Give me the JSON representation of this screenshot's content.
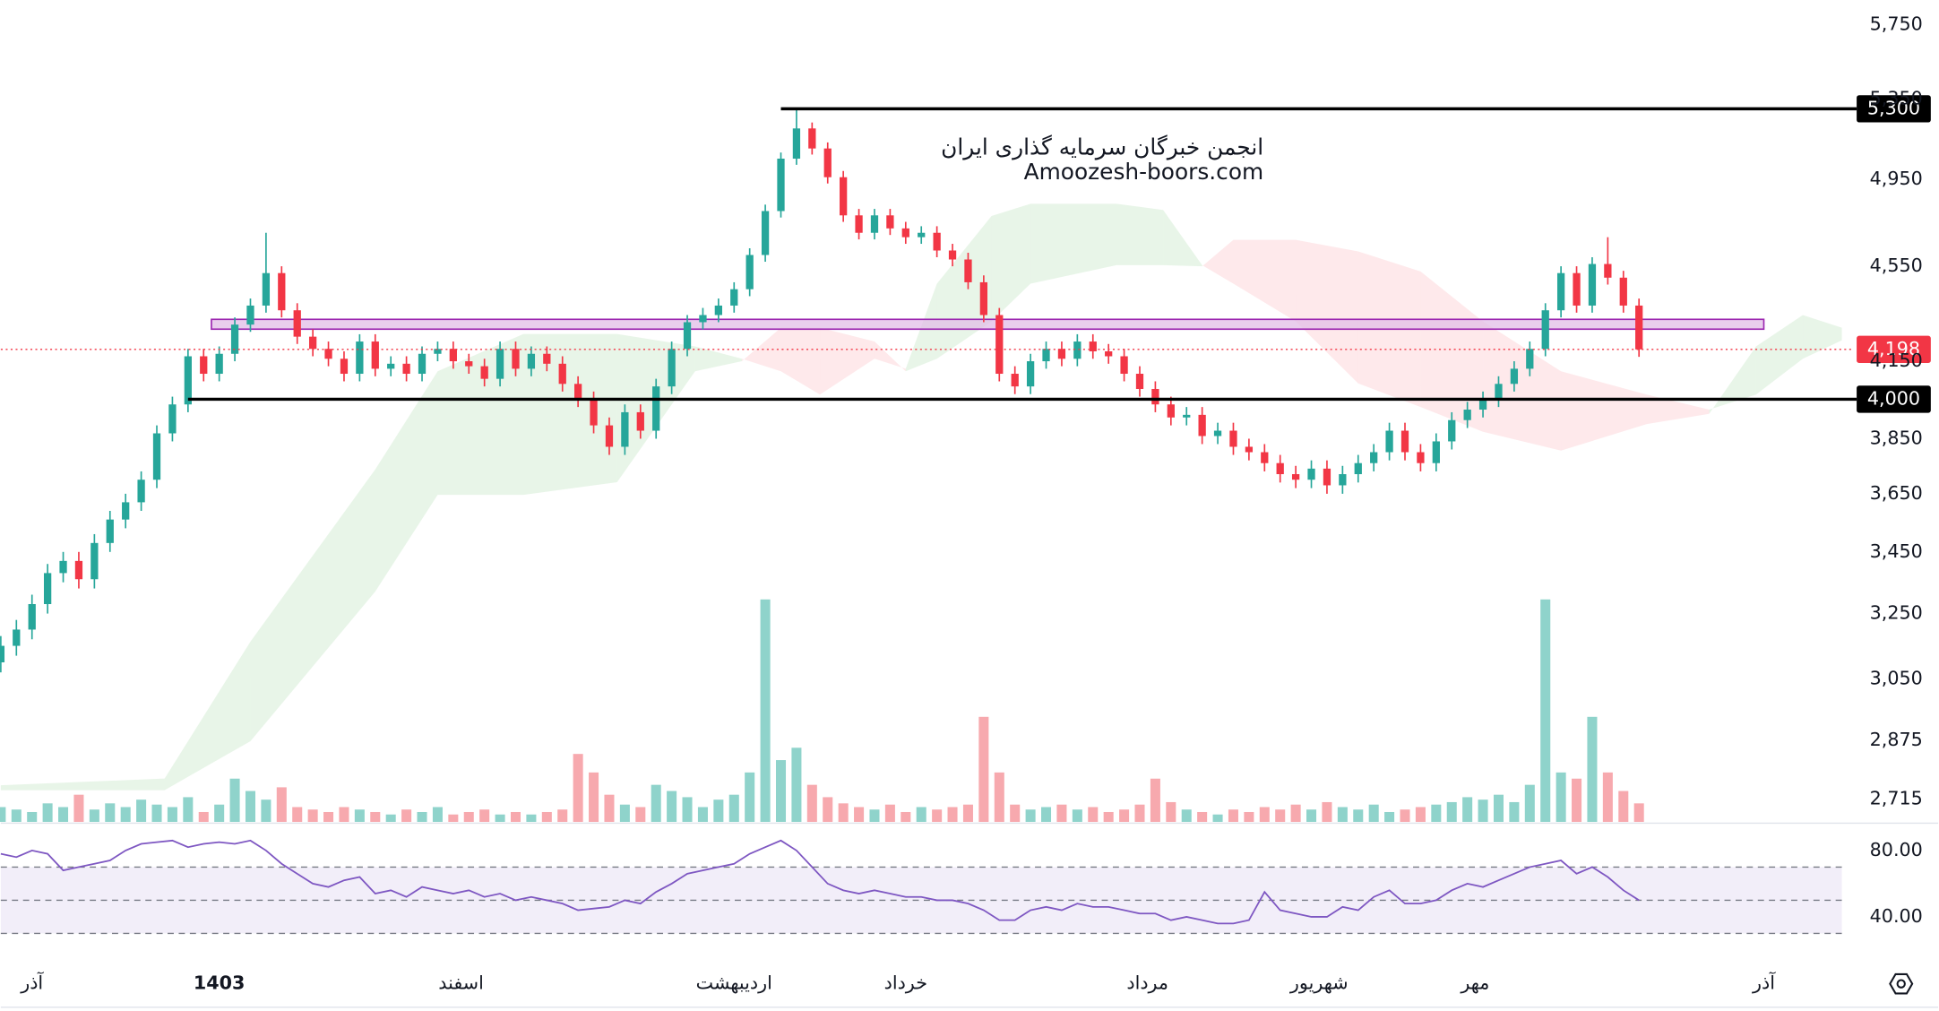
{
  "chart_data": {
    "type": "candlestick",
    "log": true,
    "grid": false,
    "up_color": "#26a69a",
    "down_color": "#f23645",
    "watermark": [
      "انجمن خبرگان سرمایه گذاری ایران",
      "Amoozesh-boors.com"
    ],
    "xlim": [
      0,
      236
    ],
    "ylim": [
      2656,
      5889
    ],
    "yticks": [
      {
        "value": 5750,
        "label": "5,750"
      },
      {
        "value": 5350,
        "label": "5,350"
      },
      {
        "value": 4950,
        "label": "4,950"
      },
      {
        "value": 4550,
        "label": "4,550"
      },
      {
        "value": 4150,
        "label": "4,150"
      },
      {
        "value": 3850,
        "label": "3,850"
      },
      {
        "value": 3650,
        "label": "3,650"
      },
      {
        "value": 3450,
        "label": "3,450"
      },
      {
        "value": 3250,
        "label": "3,250"
      },
      {
        "value": 3050,
        "label": "3,050"
      },
      {
        "value": 2875,
        "label": "2,875"
      },
      {
        "value": 2715,
        "label": "2,715"
      }
    ],
    "xticks": [
      {
        "value": 4,
        "label": "آذر"
      },
      {
        "value": 28,
        "label": "1403",
        "bold": true
      },
      {
        "value": 59,
        "label": "اسفند"
      },
      {
        "value": 94,
        "label": "اردیبهشت"
      },
      {
        "value": 116,
        "label": "خرداد"
      },
      {
        "value": 147,
        "label": "مرداد"
      },
      {
        "value": 169,
        "label": "شهریور"
      },
      {
        "value": 189,
        "label": "مهر"
      },
      {
        "value": 226,
        "label": "آذر"
      }
    ],
    "x": [
      0,
      2,
      4,
      6,
      8,
      10,
      12,
      14,
      16,
      18,
      20,
      22,
      24,
      26,
      28,
      30,
      32,
      34,
      36,
      38,
      40,
      42,
      44,
      46,
      48,
      50,
      52,
      54,
      56,
      58,
      60,
      62,
      64,
      66,
      68,
      70,
      72,
      74,
      76,
      78,
      80,
      82,
      84,
      86,
      88,
      90,
      92,
      94,
      96,
      98,
      100,
      102,
      104,
      106,
      108,
      110,
      112,
      114,
      116,
      118,
      120,
      122,
      124,
      126,
      128,
      130,
      132,
      134,
      136,
      138,
      140,
      142,
      144,
      146,
      148,
      150,
      152,
      154,
      156,
      158,
      160,
      162,
      164,
      166,
      168,
      170,
      172,
      174,
      176,
      178,
      180,
      182,
      184,
      186,
      188,
      190,
      192,
      194,
      196,
      198,
      200,
      202,
      204,
      206,
      208,
      210
    ],
    "open": [
      3100,
      3150,
      3200,
      3280,
      3380,
      3420,
      3360,
      3480,
      3560,
      3620,
      3700,
      3870,
      3980,
      4170,
      4100,
      4180,
      4300,
      4380,
      4520,
      4360,
      4250,
      4200,
      4160,
      4100,
      4230,
      4120,
      4140,
      4100,
      4180,
      4200,
      4150,
      4130,
      4080,
      4200,
      4120,
      4180,
      4140,
      4060,
      4000,
      3900,
      3820,
      3950,
      3880,
      4050,
      4200,
      4310,
      4340,
      4380,
      4450,
      4600,
      4800,
      5050,
      5200,
      5100,
      4960,
      4780,
      4700,
      4780,
      4720,
      4680,
      4700,
      4620,
      4580,
      4480,
      4340,
      4100,
      4050,
      4150,
      4200,
      4160,
      4230,
      4190,
      4170,
      4100,
      4040,
      3980,
      3930,
      3940,
      3860,
      3880,
      3820,
      3800,
      3760,
      3720,
      3700,
      3740,
      3680,
      3720,
      3760,
      3800,
      3880,
      3800,
      3760,
      3840,
      3920,
      3960,
      4000,
      4060,
      4120,
      4200,
      4360,
      4520,
      4380,
      4560,
      4500,
      4380
    ],
    "high": [
      3180,
      3230,
      3310,
      3410,
      3450,
      3450,
      3510,
      3590,
      3650,
      3730,
      3900,
      4010,
      4200,
      4200,
      4210,
      4330,
      4410,
      4700,
      4550,
      4390,
      4280,
      4230,
      4190,
      4260,
      4260,
      4170,
      4170,
      4210,
      4230,
      4230,
      4180,
      4160,
      4230,
      4230,
      4210,
      4210,
      4170,
      4090,
      4030,
      3930,
      3980,
      3980,
      4080,
      4230,
      4340,
      4370,
      4410,
      4480,
      4630,
      4830,
      5080,
      5300,
      5230,
      5130,
      4990,
      4810,
      4810,
      4810,
      4750,
      4730,
      4730,
      4650,
      4610,
      4510,
      4370,
      4130,
      4180,
      4230,
      4230,
      4260,
      4260,
      4220,
      4200,
      4130,
      4070,
      4010,
      3970,
      3970,
      3910,
      3910,
      3850,
      3830,
      3790,
      3750,
      3770,
      3770,
      3750,
      3790,
      3830,
      3910,
      3910,
      3830,
      3870,
      3950,
      3990,
      4030,
      4090,
      4150,
      4230,
      4390,
      4550,
      4550,
      4590,
      4680,
      4530,
      4410
    ],
    "low": [
      3070,
      3120,
      3170,
      3250,
      3350,
      3330,
      3330,
      3450,
      3530,
      3590,
      3670,
      3840,
      3950,
      4070,
      4070,
      4150,
      4270,
      4350,
      4330,
      4220,
      4170,
      4130,
      4070,
      4070,
      4090,
      4090,
      4070,
      4070,
      4150,
      4120,
      4100,
      4050,
      4050,
      4090,
      4090,
      4110,
      4030,
      3970,
      3870,
      3790,
      3790,
      3850,
      3850,
      4020,
      4170,
      4280,
      4310,
      4350,
      4420,
      4570,
      4770,
      5020,
      5070,
      4930,
      4750,
      4670,
      4670,
      4690,
      4650,
      4650,
      4590,
      4550,
      4450,
      4310,
      4070,
      4020,
      4020,
      4120,
      4130,
      4130,
      4160,
      4140,
      4070,
      4010,
      3950,
      3900,
      3900,
      3830,
      3830,
      3790,
      3770,
      3730,
      3690,
      3670,
      3670,
      3650,
      3650,
      3690,
      3730,
      3770,
      3770,
      3730,
      3730,
      3810,
      3890,
      3930,
      3970,
      4030,
      4090,
      4170,
      4330,
      4350,
      4350,
      4470,
      4350,
      4168
    ],
    "close": [
      3150,
      3200,
      3280,
      3380,
      3420,
      3360,
      3480,
      3560,
      3620,
      3700,
      3870,
      3980,
      4170,
      4100,
      4180,
      4300,
      4380,
      4520,
      4360,
      4250,
      4200,
      4160,
      4100,
      4230,
      4120,
      4140,
      4100,
      4180,
      4200,
      4150,
      4130,
      4080,
      4200,
      4120,
      4180,
      4140,
      4060,
      4000,
      3900,
      3820,
      3950,
      3880,
      4050,
      4200,
      4310,
      4340,
      4380,
      4450,
      4600,
      4800,
      5050,
      5200,
      5100,
      4960,
      4780,
      4700,
      4780,
      4720,
      4680,
      4700,
      4620,
      4580,
      4480,
      4340,
      4100,
      4050,
      4150,
      4200,
      4160,
      4230,
      4190,
      4170,
      4100,
      4040,
      3980,
      3930,
      3940,
      3860,
      3880,
      3820,
      3800,
      3760,
      3720,
      3700,
      3740,
      3680,
      3720,
      3760,
      3800,
      3880,
      3800,
      3760,
      3840,
      3920,
      3960,
      4000,
      4060,
      4120,
      4200,
      4360,
      4520,
      4380,
      4560,
      4500,
      4380,
      4198
    ],
    "volume": {
      "vlim": [
        0,
        200
      ],
      "up_color": "#8fd3cb",
      "down_color": "#f7a9ae",
      "values": [
        12,
        10,
        8,
        15,
        12,
        22,
        10,
        15,
        12,
        18,
        14,
        12,
        20,
        8,
        14,
        35,
        25,
        18,
        28,
        12,
        10,
        8,
        12,
        10,
        8,
        6,
        10,
        8,
        12,
        6,
        8,
        10,
        6,
        8,
        6,
        8,
        10,
        55,
        40,
        22,
        14,
        12,
        30,
        25,
        20,
        12,
        18,
        22,
        40,
        180,
        50,
        60,
        30,
        20,
        15,
        12,
        10,
        14,
        8,
        12,
        10,
        12,
        14,
        85,
        40,
        14,
        10,
        12,
        14,
        10,
        12,
        8,
        10,
        14,
        35,
        16,
        10,
        8,
        6,
        10,
        8,
        12,
        10,
        14,
        10,
        16,
        12,
        10,
        14,
        8,
        10,
        12,
        14,
        16,
        20,
        18,
        22,
        16,
        30,
        180,
        40,
        35,
        85,
        40,
        25,
        15
      ]
    },
    "cloud": {
      "up_color": "rgba(76,175,80,0.13)",
      "down_color": "rgba(242,54,69,0.11)",
      "x": [
        0,
        21,
        32,
        48,
        56,
        67,
        79,
        89,
        95,
        100,
        105,
        112,
        116,
        120,
        127,
        132,
        143,
        149,
        154,
        158,
        166,
        174,
        182,
        190,
        200,
        211,
        219,
        225,
        231,
        236
      ],
      "a": [
        2752,
        2770,
        3163,
        3737,
        4110,
        4261,
        4261,
        4210,
        4160,
        4110,
        4018,
        4160,
        4120,
        4474,
        4777,
        4834,
        4834,
        4805,
        4555,
        4474,
        4313,
        4062,
        3970,
        3876,
        3806,
        3905,
        3944,
        4210,
        4340,
        4287
      ],
      "b": [
        2739,
        2739,
        2872,
        3320,
        3646,
        3646,
        3691,
        4110,
        4150,
        4287,
        4287,
        4230,
        4110,
        4160,
        4313,
        4474,
        4555,
        4555,
        4550,
        4668,
        4668,
        4616,
        4527,
        4313,
        4110,
        4018,
        3960,
        4018,
        4160,
        4235
      ]
    },
    "zone": {
      "low": 4281,
      "high": 4322,
      "from": 27,
      "to": 226,
      "color": "#e1bee7",
      "border": "#9c27b0"
    },
    "levels": [
      {
        "value": 5300,
        "label": "5,300",
        "from": 100
      },
      {
        "value": 4000,
        "label": "4,000",
        "from": 24
      }
    ],
    "last": {
      "value": 4198,
      "label": "4,198"
    },
    "rsi": {
      "ylim": [
        19,
        95
      ],
      "color": "#7e57c2",
      "yticks": [
        {
          "value": 80,
          "label": "80.00"
        },
        {
          "value": 40,
          "label": "40.00"
        }
      ],
      "levels": [
        70,
        50,
        30
      ],
      "values": [
        78,
        76,
        80,
        78,
        68,
        70,
        72,
        74,
        80,
        84,
        85,
        86,
        82,
        84,
        85,
        84,
        86,
        80,
        72,
        66,
        60,
        58,
        62,
        64,
        54,
        56,
        52,
        58,
        56,
        54,
        56,
        52,
        54,
        50,
        52,
        50,
        48,
        44,
        45,
        46,
        50,
        48,
        55,
        60,
        66,
        68,
        70,
        72,
        78,
        82,
        86,
        80,
        70,
        60,
        56,
        54,
        56,
        54,
        52,
        52,
        50,
        50,
        48,
        44,
        38,
        38,
        44,
        46,
        44,
        48,
        46,
        46,
        44,
        42,
        42,
        38,
        40,
        38,
        36,
        36,
        38,
        55,
        44,
        42,
        40,
        40,
        46,
        44,
        52,
        56,
        48,
        48,
        50,
        56,
        60,
        58,
        62,
        66,
        70,
        72,
        74,
        66,
        70,
        64,
        56,
        50
      ]
    }
  }
}
